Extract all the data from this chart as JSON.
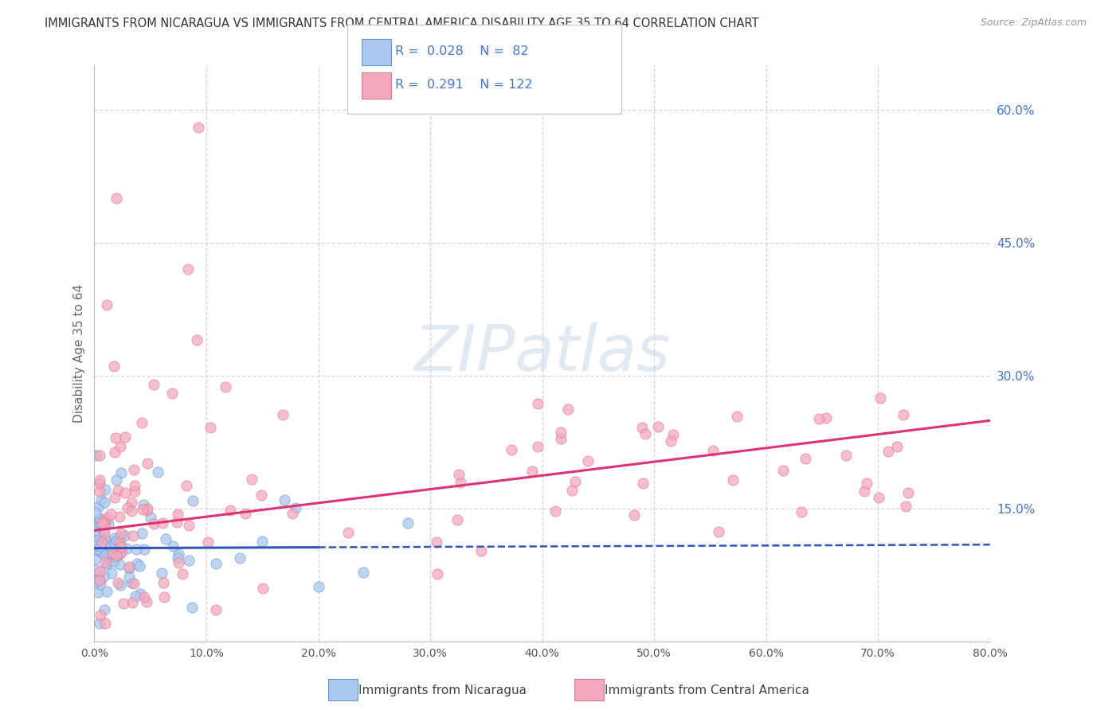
{
  "title": "IMMIGRANTS FROM NICARAGUA VS IMMIGRANTS FROM CENTRAL AMERICA DISABILITY AGE 35 TO 64 CORRELATION CHART",
  "source": "Source: ZipAtlas.com",
  "ylabel": "Disability Age 35 to 64",
  "legend_label1": "Immigrants from Nicaragua",
  "legend_label2": "Immigrants from Central America",
  "R1": 0.028,
  "N1": 82,
  "R2": 0.291,
  "N2": 122,
  "color1": "#adc8f0",
  "color1_edge": "#6699cc",
  "color2": "#f5a8bc",
  "color2_edge": "#dd7799",
  "line1_color": "#3355bb",
  "line2_color": "#dd3377",
  "xlim": [
    0.0,
    0.8
  ],
  "ylim": [
    0.0,
    0.65
  ],
  "xticks": [
    0.0,
    0.1,
    0.2,
    0.3,
    0.4,
    0.5,
    0.6,
    0.7,
    0.8
  ],
  "yticks_right": [
    0.15,
    0.3,
    0.45,
    0.6
  ],
  "watermark": "ZIPatlas",
  "background_color": "#ffffff",
  "title_color": "#333333",
  "tick_label_color": "#4477cc",
  "grid_color": "#cccccc",
  "line1_solid_xend": 0.2,
  "line1_intercept": 0.105,
  "line1_slope": 0.005,
  "line2_intercept": 0.125,
  "line2_slope": 0.155
}
